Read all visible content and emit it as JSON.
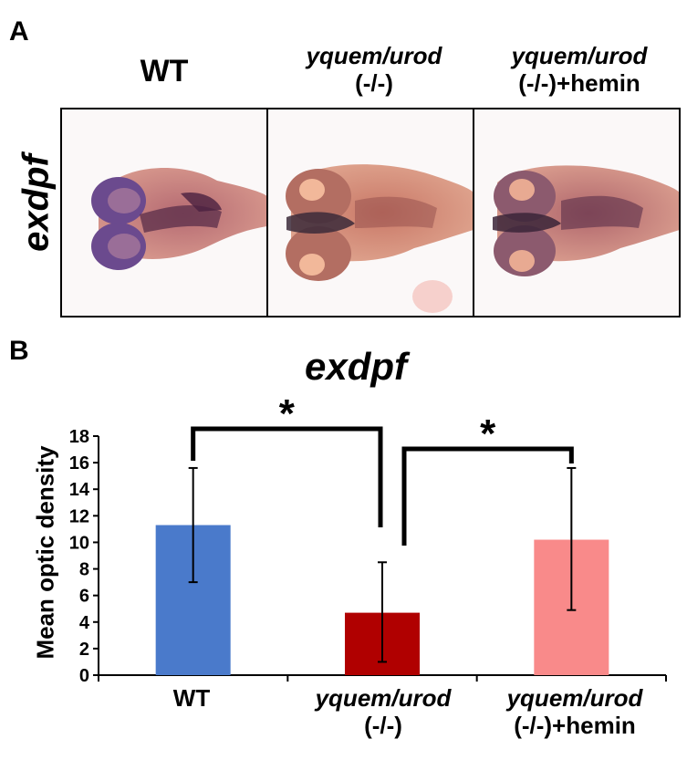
{
  "panel_a": {
    "letter": "A",
    "columns": [
      {
        "line1": "WT",
        "line2": "",
        "italic1": false
      },
      {
        "line1": "yquem/urod",
        "line2": "(-/-)",
        "italic1": true
      },
      {
        "line1": "yquem/urod",
        "line2": "(-/-)+hemin",
        "italic1": true
      }
    ],
    "row_label": "exdpf"
  },
  "panel_b": {
    "letter": "B",
    "significance_marks": [
      "*",
      "*"
    ]
  },
  "colors": {
    "wt_bar": "#4a7acb",
    "mutant_bar": "#b00000",
    "hemin_bar": "#f98a8a"
  },
  "chart_data": {
    "type": "bar",
    "title": "exdpf",
    "ylabel": "Mean optic density",
    "xlabel": "",
    "ylim": [
      0,
      18
    ],
    "yticks": [
      0,
      2,
      4,
      6,
      8,
      10,
      12,
      14,
      16,
      18
    ],
    "categories": [
      {
        "line1": "WT",
        "line2": ""
      },
      {
        "line1": "yquem/urod",
        "line2": "(-/-)"
      },
      {
        "line1": "yquem/urod",
        "line2": "(-/-)+hemin"
      }
    ],
    "values": [
      11.3,
      4.7,
      10.2
    ],
    "error_low": [
      7.0,
      1.0,
      4.9
    ],
    "error_high": [
      15.6,
      8.5,
      15.6
    ],
    "comparisons": [
      {
        "from": 0,
        "to": 1,
        "label": "*"
      },
      {
        "from": 1,
        "to": 2,
        "label": "*"
      }
    ]
  }
}
